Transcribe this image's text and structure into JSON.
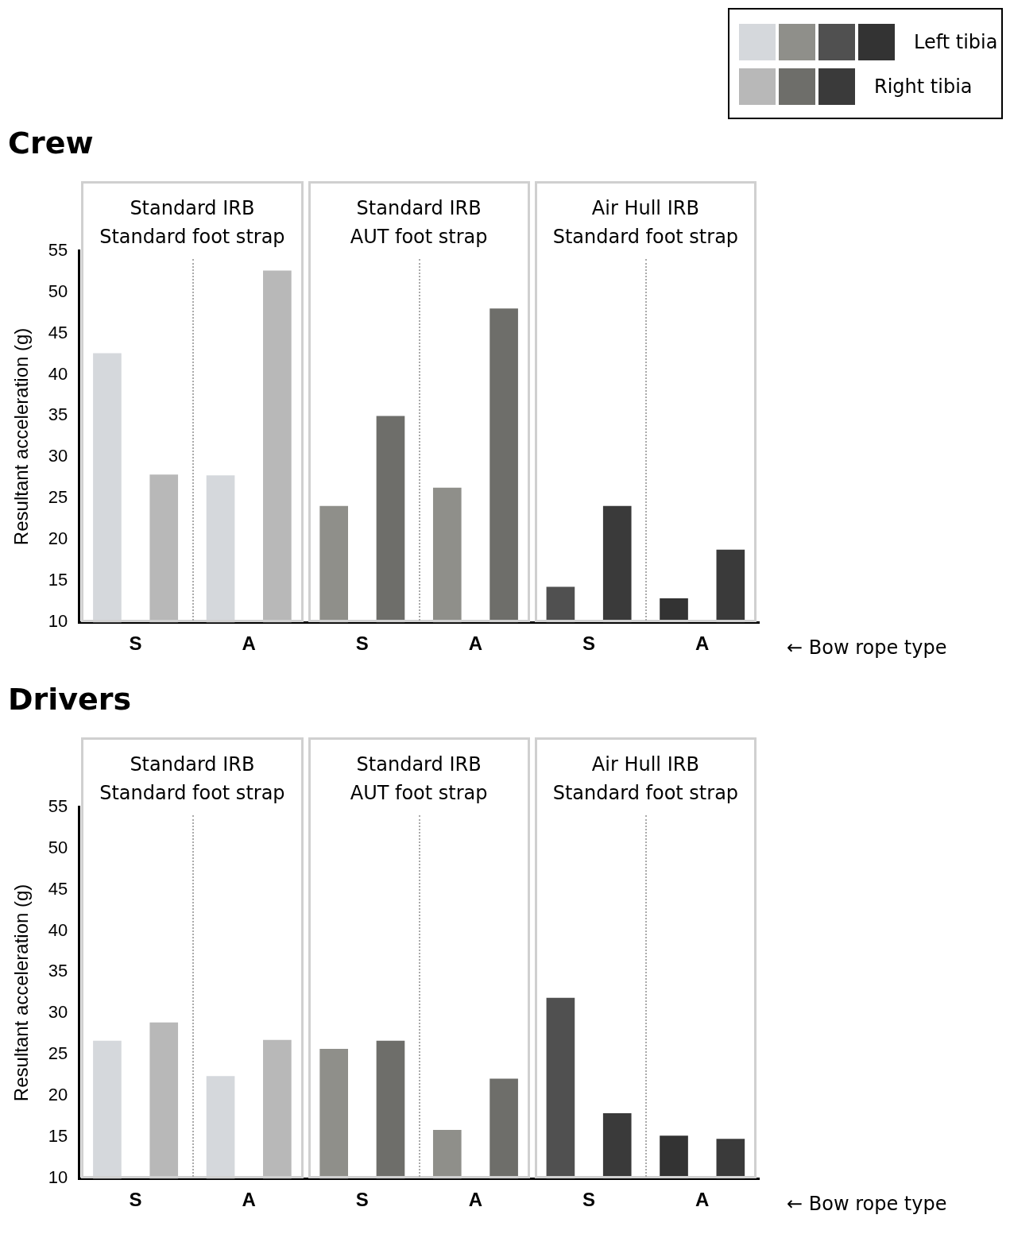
{
  "chart_data": [
    {
      "type": "bar",
      "title": "Crew",
      "ylabel": "Resultant acceleration (g)",
      "categories": [
        "S",
        "A",
        "S",
        "A",
        "S",
        "A"
      ],
      "series": [
        {
          "name": "Left tibia",
          "colors": [
            "#d5d8dc",
            "#d5d8dc",
            "#8f8f8a",
            "#8f8f8a",
            "#505050",
            "#333333"
          ],
          "values": [
            42.6,
            27.8,
            24.1,
            26.3,
            14.3,
            12.9
          ]
        },
        {
          "name": "Right tibia",
          "colors": [
            "#b8b8b8",
            "#b8b8b8",
            "#6e6e6a",
            "#6e6e6a",
            "#3a3a3a",
            "#3a3a3a"
          ],
          "values": [
            27.9,
            52.6,
            35.0,
            48.0,
            24.1,
            18.8
          ]
        }
      ],
      "ylim": [
        10,
        55
      ],
      "yticks": [
        10,
        15,
        20,
        25,
        30,
        35,
        40,
        45,
        50,
        55
      ],
      "grid": false,
      "legend": "top right",
      "annotations": [
        "Standard IRB\nStandard foot strap",
        "Standard IRB\nAUT foot strap",
        "Air Hull IRB\nStandard foot strap",
        "← Bow rope type"
      ]
    },
    {
      "type": "bar",
      "title": "Drivers",
      "ylabel": "Resultant acceleration (g)",
      "categories": [
        "S",
        "A",
        "S",
        "A",
        "S",
        "A"
      ],
      "series": [
        {
          "colors": [
            "#d5d8dc",
            "#d5d8dc",
            "#8f8f8a",
            "#8f8f8a",
            "#505050",
            "#333333"
          ],
          "values": [
            26.7,
            22.4,
            25.7,
            15.9,
            31.9,
            15.2
          ]
        },
        {
          "colors": [
            "#b8b8b8",
            "#b8b8b8",
            "#6e6e6a",
            "#6e6e6a",
            "#3a3a3a",
            "#3a3a3a"
          ],
          "values": [
            28.9,
            26.8,
            26.7,
            22.1,
            17.9,
            14.8
          ]
        }
      ],
      "ylim": [
        10,
        55
      ],
      "yticks": [
        10,
        15,
        20,
        25,
        30,
        35,
        40,
        45,
        50,
        55
      ],
      "grid": false,
      "annotations": [
        "Standard IRB\nStandard foot strap",
        "Standard IRB\nAUT foot strap",
        "Air Hull IRB\nStandard foot strap",
        "← Bow rope type"
      ]
    }
  ]
}
